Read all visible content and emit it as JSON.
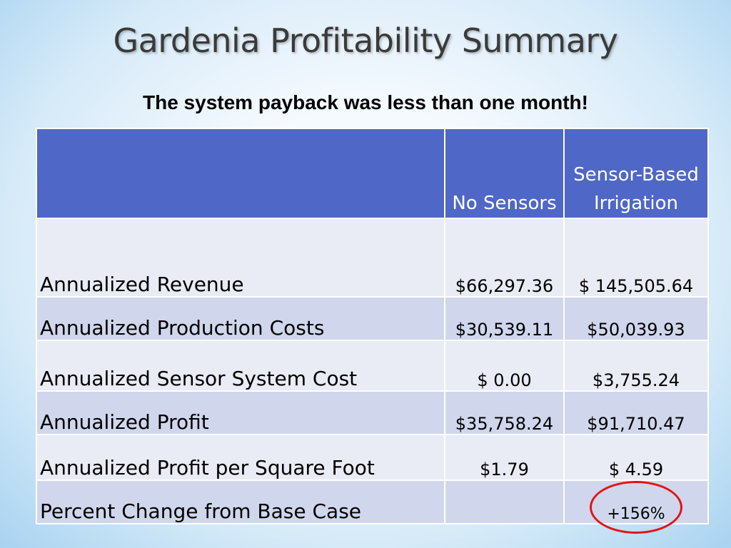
{
  "slide": {
    "title": "Gardenia Profitability Summary",
    "subtitle": "The system payback was less than one month!"
  },
  "table": {
    "headers": [
      "",
      "No Sensors",
      "Sensor-Based Irrigation"
    ],
    "rows": [
      {
        "label": "Annualized Revenue",
        "no_sensors": "$66,297.36",
        "sensor_based": "$ 145,505.64"
      },
      {
        "label": "Annualized Production Costs",
        "no_sensors": "$30,539.11",
        "sensor_based": "$50,039.93"
      },
      {
        "label": "Annualized Sensor System Cost",
        "no_sensors": "$ 0.00",
        "sensor_based": "$3,755.24"
      },
      {
        "label": "Annualized Profit",
        "no_sensors": "$35,758.24",
        "sensor_based": "$91,710.47"
      },
      {
        "label": "Annualized Profit per Square Foot",
        "no_sensors": "$1.79",
        "sensor_based": "$ 4.59"
      },
      {
        "label": "Percent Change from Base Case",
        "no_sensors": "",
        "sensor_based": "+156%"
      }
    ]
  },
  "colors": {
    "header_bg": "#4f67c6",
    "row_light": "#e9ebf5",
    "row_dark": "#d0d6ec",
    "highlight_circle": "#e01515"
  }
}
